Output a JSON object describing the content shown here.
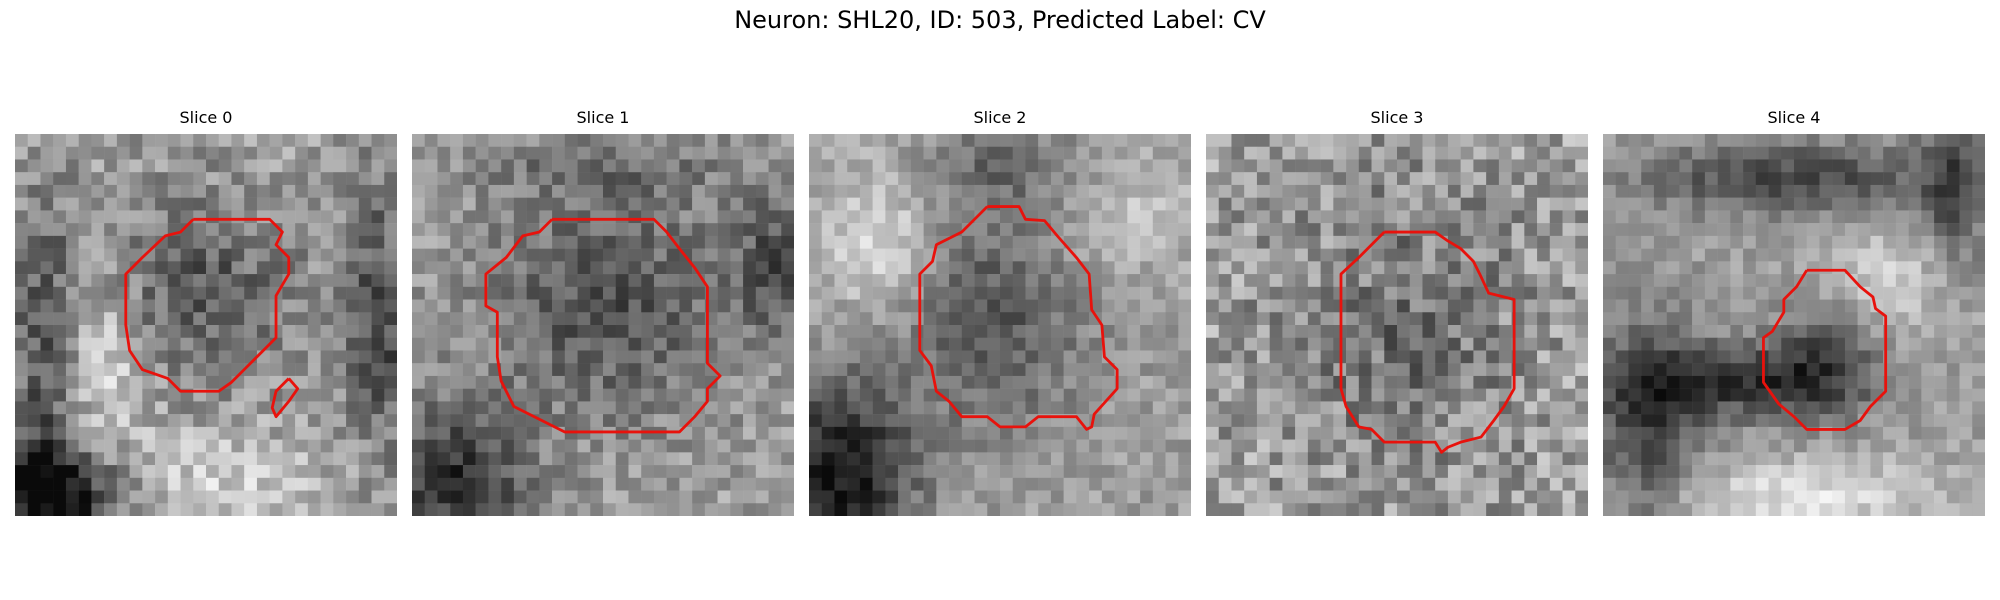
{
  "figure": {
    "title": "Neuron: SHL20, ID: 503, Predicted Label: CV",
    "contour_color": "#e8120c",
    "colormap": "gray",
    "panels": [
      {
        "title": "Slice 0",
        "icon": "grayscale-microscopy-slice-with-red-contour"
      },
      {
        "title": "Slice 1",
        "icon": "grayscale-microscopy-slice-with-red-contour"
      },
      {
        "title": "Slice 2",
        "icon": "grayscale-microscopy-slice-with-red-contour"
      },
      {
        "title": "Slice 3",
        "icon": "grayscale-microscopy-slice-with-red-contour"
      },
      {
        "title": "Slice 4",
        "icon": "grayscale-microscopy-slice-with-red-contour"
      }
    ]
  }
}
